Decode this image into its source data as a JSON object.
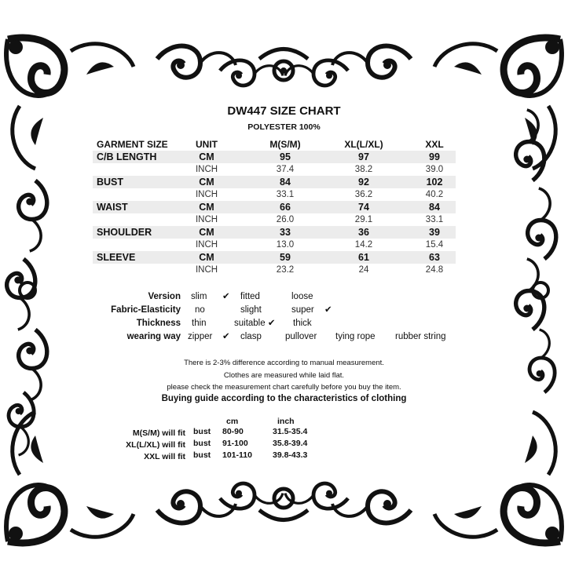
{
  "title": "DW447 SIZE CHART",
  "material": "POLYESTER 100%",
  "table": {
    "headers": [
      "GARMENT SIZE",
      "UNIT",
      "M(S/M)",
      "XL(L/XL)",
      "XXL"
    ],
    "rows": [
      {
        "label": "C/B LENGTH",
        "cm": [
          "CM",
          "95",
          "97",
          "99"
        ],
        "inch": [
          "INCH",
          "37.4",
          "38.2",
          "39.0"
        ]
      },
      {
        "label": "BUST",
        "cm": [
          "CM",
          "84",
          "92",
          "102"
        ],
        "inch": [
          "INCH",
          "33.1",
          "36.2",
          "40.2"
        ]
      },
      {
        "label": "WAIST",
        "cm": [
          "CM",
          "66",
          "74",
          "84"
        ],
        "inch": [
          "INCH",
          "26.0",
          "29.1",
          "33.1"
        ]
      },
      {
        "label": "SHOULDER",
        "cm": [
          "CM",
          "33",
          "36",
          "39"
        ],
        "inch": [
          "INCH",
          "13.0",
          "14.2",
          "15.4"
        ]
      },
      {
        "label": "SLEEVE",
        "cm": [
          "CM",
          "59",
          "61",
          "63"
        ],
        "inch": [
          "INCH",
          "23.2",
          "24",
          "24.8"
        ]
      }
    ]
  },
  "attributes": [
    {
      "key": "Version",
      "options": [
        "slim",
        "✔",
        "fitted",
        "loose"
      ]
    },
    {
      "key": "Fabric-Elasticity",
      "options": [
        "no",
        "slight",
        "super",
        "✔"
      ]
    },
    {
      "key": "Thickness",
      "options": [
        "thin",
        "suitable ✔",
        "thick"
      ]
    },
    {
      "key": "wearing way",
      "options": [
        "zipper",
        "✔",
        "clasp",
        "pullover",
        "tying rope",
        "rubber string"
      ]
    }
  ],
  "notes": [
    "There is 2-3% difference according to manual measurement.",
    "Clothes are measured while laid flat.",
    "please check the measurement chart carefully before you buy the item."
  ],
  "guide": {
    "title": "Buying guide according to the characteristics of clothing",
    "col_cm": "cm",
    "col_inch": "inch",
    "rows": [
      {
        "size": "M(S/M) will fit",
        "part": "bust",
        "cm": "80-90",
        "inch": "31.5-35.4"
      },
      {
        "size": "XL(L/XL) will fit",
        "part": "bust",
        "cm": "91-100",
        "inch": "35.8-39.4"
      },
      {
        "size": "XXL will fit",
        "part": "bust",
        "cm": "101-110",
        "inch": "39.8-43.3"
      }
    ]
  },
  "colors": {
    "ornament": "#111111",
    "row_shade": "#ececec"
  }
}
